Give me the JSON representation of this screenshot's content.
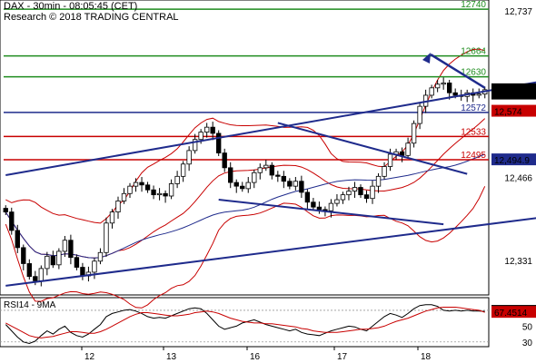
{
  "header": {
    "line1": "DAX - 30min - 08:05:45 (CET)",
    "line2": "Research © 2018 TRADING CENTRAL"
  },
  "chart_data": [
    {
      "type": "candlestick",
      "ylim": [
        12275,
        12755
      ],
      "y_ticks": [
        12737,
        12466,
        12331
      ],
      "x_ticks": [
        "12",
        "13",
        "16",
        "17",
        "18"
      ],
      "levels": [
        {
          "label": "12740",
          "value": 12740,
          "color": "#1f8c1f"
        },
        {
          "label": "12664",
          "value": 12664,
          "color": "#1f8c1f"
        },
        {
          "label": "12630",
          "value": 12630,
          "color": "#1f8c1f"
        },
        {
          "label": "12572",
          "value": 12572,
          "color": "#1f2b8c"
        },
        {
          "label": "12533",
          "value": 12533,
          "color": "#c80000"
        },
        {
          "label": "12495",
          "value": 12495,
          "color": "#c80000"
        }
      ],
      "price_tags": [
        {
          "label": "12,609",
          "value": 12609,
          "bg": "#000000",
          "fg": "#ffffff"
        },
        {
          "label": "12,602",
          "value": 12602,
          "bg": "#000000",
          "fg": "#ffffff"
        },
        {
          "label": "12,574",
          "value": 12574,
          "bg": "#c80000",
          "fg": "#ffffff"
        },
        {
          "label": "12,494.9",
          "value": 12494.9,
          "bg": "#1f2b8c",
          "fg": "#ffffff"
        }
      ],
      "trend_lines": [
        {
          "from": [
            0,
            12470
          ],
          "to": [
            95,
            12630
          ]
        },
        {
          "from": [
            0,
            12290
          ],
          "to": [
            110,
            12425
          ]
        },
        {
          "from": [
            46,
            12555
          ],
          "to": [
            78,
            12472
          ]
        },
        {
          "from": [
            36,
            12430
          ],
          "to": [
            74,
            12390
          ]
        }
      ],
      "closes": [
        12410,
        12380,
        12352,
        12326,
        12305,
        12298,
        12318,
        12338,
        12324,
        12346,
        12364,
        12336,
        12320,
        12306,
        12312,
        12330,
        12344,
        12392,
        12410,
        12428,
        12440,
        12452,
        12458,
        12454,
        12446,
        12438,
        12440,
        12436,
        12456,
        12468,
        12488,
        12510,
        12528,
        12540,
        12548,
        12538,
        12506,
        12482,
        12458,
        12452,
        12448,
        12458,
        12474,
        12482,
        12486,
        12470,
        12468,
        12460,
        12452,
        12460,
        12442,
        12426,
        12418,
        12414,
        12412,
        12424,
        12430,
        12438,
        12444,
        12450,
        12438,
        12432,
        12452,
        12468,
        12484,
        12504,
        12508,
        12502,
        12522,
        12554,
        12582,
        12600,
        12612,
        12618,
        12620,
        12604,
        12600,
        12598,
        12604,
        12600,
        12602,
        12609
      ]
    },
    {
      "type": "line",
      "title": "RSI14 - 9MA",
      "ylim": [
        24,
        86
      ],
      "y_ticks": [
        70,
        50,
        30
      ],
      "series": [
        {
          "name": "RSI14",
          "color": "#000000",
          "values": [
            52,
            44,
            36,
            30,
            28,
            31,
            38,
            44,
            40,
            46,
            50,
            42,
            38,
            36,
            40,
            46,
            52,
            62,
            66,
            68,
            70,
            71,
            69,
            66,
            62,
            60,
            61,
            60,
            63,
            66,
            69,
            72,
            73,
            72,
            66,
            58,
            50,
            46,
            48,
            50,
            54,
            56,
            58,
            55,
            52,
            50,
            48,
            46,
            44,
            46,
            42,
            40,
            39,
            38,
            41,
            44,
            46,
            48,
            50,
            49,
            46,
            44,
            50,
            56,
            62,
            66,
            64,
            61,
            66,
            72,
            76,
            77,
            77,
            75,
            70,
            69,
            70,
            69,
            70,
            69,
            69,
            68.6887
          ]
        },
        {
          "name": "9MA",
          "color": "#c80000",
          "values": [
            54,
            50,
            46,
            42,
            38,
            36,
            35,
            36,
            37,
            39,
            41,
            43,
            43,
            42,
            41,
            41,
            43,
            46,
            50,
            54,
            58,
            62,
            65,
            67,
            67,
            66,
            65,
            64,
            63,
            63,
            64,
            65,
            67,
            68,
            69,
            68,
            66,
            63,
            60,
            58,
            56,
            55,
            54,
            54,
            53,
            53,
            52,
            51,
            50,
            49,
            47,
            46,
            44,
            43,
            42,
            42,
            42,
            43,
            44,
            45,
            46,
            46,
            47,
            48,
            50,
            53,
            56,
            58,
            60,
            63,
            66,
            69,
            71,
            73,
            74,
            74,
            74,
            73,
            72,
            71,
            70,
            67.4514
          ]
        }
      ],
      "price_tags": [
        {
          "label": "68.6887",
          "value": 68.6887,
          "bg": "#000000",
          "fg": "#ffffff"
        },
        {
          "label": "67.4514",
          "value": 67.4514,
          "bg": "#c80000",
          "fg": "#ffffff"
        }
      ]
    }
  ]
}
